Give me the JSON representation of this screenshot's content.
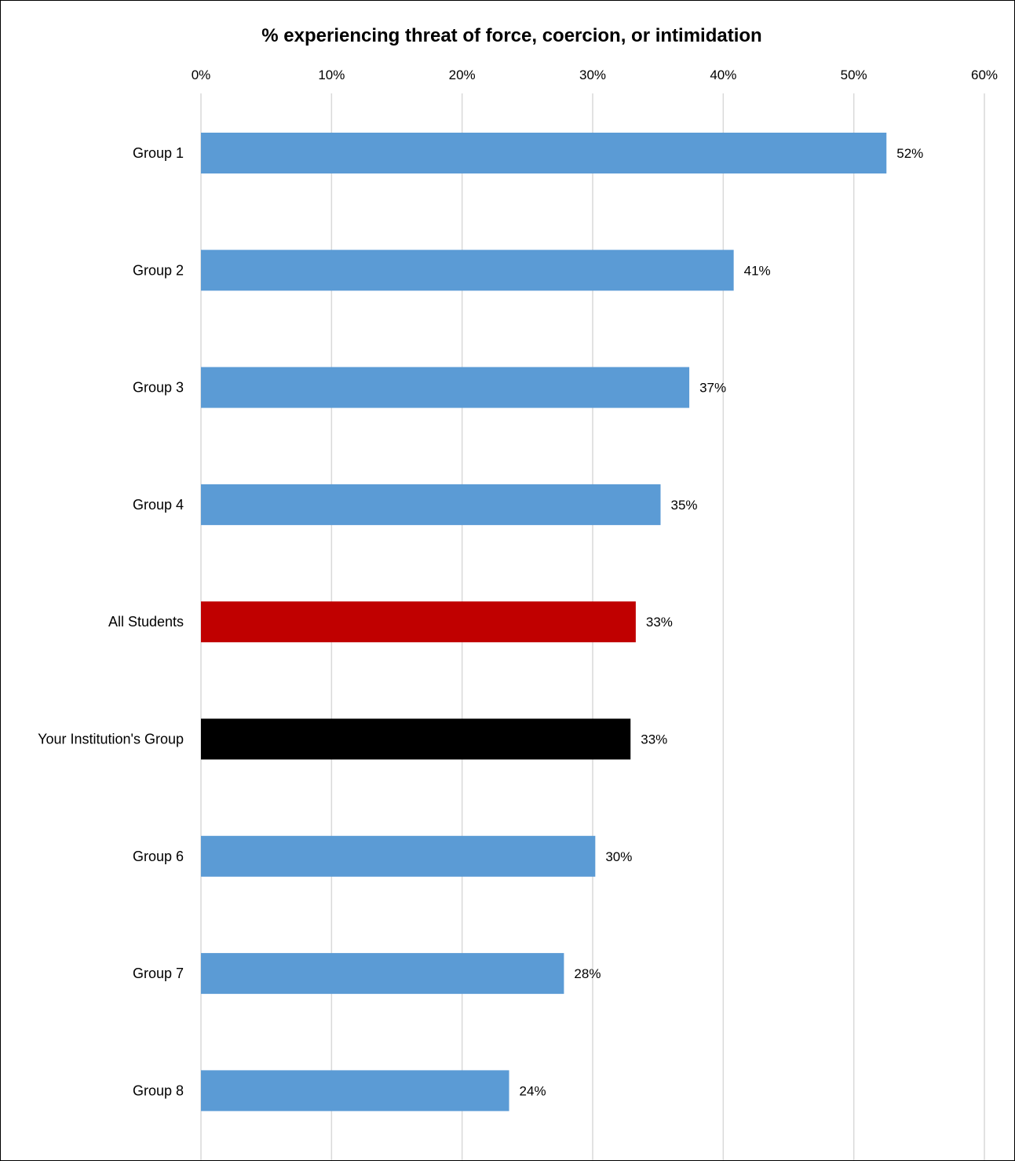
{
  "chart_data": {
    "type": "bar",
    "orientation": "horizontal",
    "title": "% experiencing threat of force, coercion, or intimidation",
    "xlabel": "",
    "ylabel": "",
    "xlim": [
      0,
      60
    ],
    "x_ticks": [
      "0%",
      "10%",
      "20%",
      "30%",
      "40%",
      "50%",
      "60%"
    ],
    "x_tick_values": [
      0,
      10,
      20,
      30,
      40,
      50,
      60
    ],
    "x_axis_position": "top",
    "grid": true,
    "legend": "none",
    "categories": [
      "Group 1",
      "Group 2",
      "Group 3",
      "Group 4",
      "All Students",
      "Your Institution's Group",
      "Group 6",
      "Group 7",
      "Group 8"
    ],
    "values": [
      52.5,
      40.8,
      37.4,
      35.2,
      33.3,
      32.9,
      30.2,
      27.8,
      23.6
    ],
    "data_labels": [
      "52%",
      "41%",
      "37%",
      "35%",
      "33%",
      "33%",
      "30%",
      "28%",
      "24%"
    ],
    "colors": [
      "#5B9BD5",
      "#5B9BD5",
      "#5B9BD5",
      "#5B9BD5",
      "#C00000",
      "#000000",
      "#5B9BD5",
      "#5B9BD5",
      "#5B9BD5"
    ],
    "grid_color": "#D9D9D9"
  }
}
